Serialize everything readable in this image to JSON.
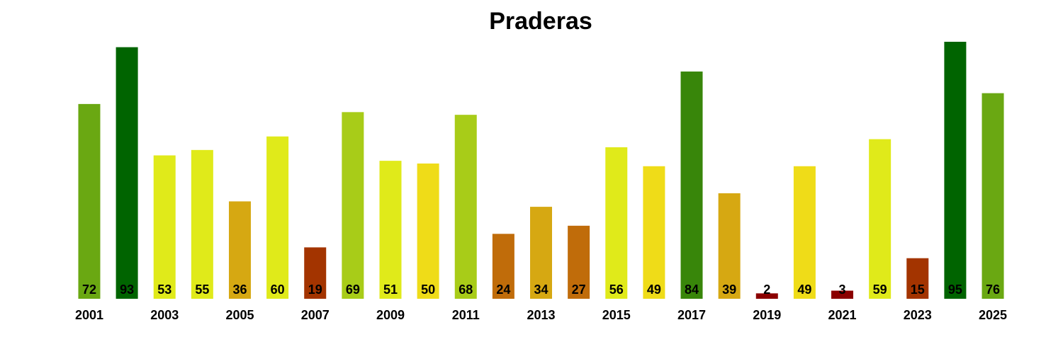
{
  "chart_data": {
    "type": "bar",
    "title": "Praderas",
    "categories": [
      "2001",
      null,
      "2003",
      null,
      "2005",
      null,
      "2007",
      null,
      "2009",
      null,
      "2011",
      null,
      "2013",
      null,
      "2015",
      null,
      "2017",
      null,
      "2019",
      null,
      "2021",
      null,
      "2023",
      null,
      "2025"
    ],
    "values": [
      72,
      93,
      53,
      55,
      36,
      60,
      19,
      69,
      51,
      50,
      68,
      24,
      34,
      27,
      56,
      49,
      84,
      39,
      2,
      49,
      3,
      59,
      15,
      95,
      76
    ],
    "colors": [
      "#6aa812",
      "#006400",
      "#e0ea1a",
      "#e0ea1a",
      "#d6a812",
      "#e0ea1a",
      "#a33400",
      "#a8cc18",
      "#e0ea1a",
      "#efdc18",
      "#a8cc18",
      "#c06c0a",
      "#d6a812",
      "#c06c0a",
      "#e0ea1a",
      "#efdc18",
      "#38860a",
      "#d6a812",
      "#8b0000",
      "#efdc18",
      "#8b0000",
      "#e0ea1a",
      "#a33400",
      "#006400",
      "#6aa812"
    ],
    "ylim": [
      0,
      95
    ]
  }
}
